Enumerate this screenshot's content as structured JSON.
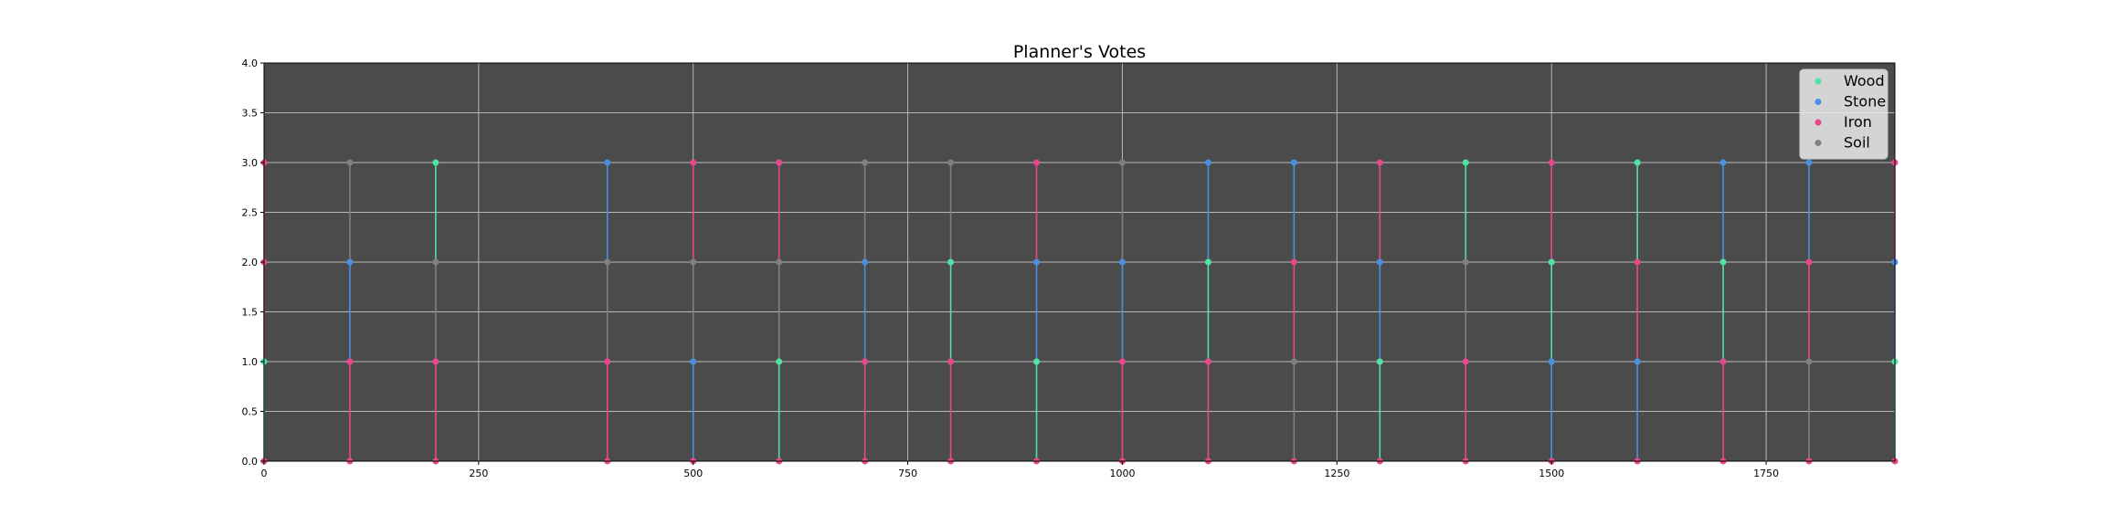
{
  "chart_data": {
    "type": "scatter",
    "title": "Planner's Votes",
    "xlabel": "",
    "ylabel": "",
    "xlim": [
      0,
      1900
    ],
    "ylim": [
      0,
      4
    ],
    "xticks": [
      0,
      250,
      500,
      750,
      1000,
      1250,
      1500,
      1750
    ],
    "yticks": [
      0.0,
      0.5,
      1.0,
      1.5,
      2.0,
      2.5,
      3.0,
      3.5,
      4.0
    ],
    "ytick_labels": [
      "0.0",
      "0.5",
      "1.0",
      "1.5",
      "2.0",
      "2.5",
      "3.0",
      "3.5",
      "4.0"
    ],
    "grid": true,
    "legend_position": "top-right",
    "background": "#4b4b4b",
    "categories_order": [
      "Wood",
      "Stone",
      "Iron",
      "Soil"
    ],
    "series": [
      {
        "name": "Wood",
        "color": "#50e3a4"
      },
      {
        "name": "Stone",
        "color": "#4a90e2"
      },
      {
        "name": "Iron",
        "color": "#e8488a"
      },
      {
        "name": "Soil",
        "color": "#808080"
      }
    ],
    "votes": [
      {
        "x": 0,
        "order": [
          "Iron",
          "Wood",
          "Iron",
          "Iron"
        ]
      },
      {
        "x": 100,
        "order": [
          "Iron",
          "Iron",
          "Stone",
          "Soil"
        ]
      },
      {
        "x": 200,
        "order": [
          "Iron",
          "Iron",
          "Soil",
          "Wood"
        ]
      },
      {
        "x": 400,
        "order": [
          "Iron",
          "Iron",
          "Soil",
          "Stone"
        ]
      },
      {
        "x": 500,
        "order": [
          "Iron",
          "Stone",
          "Soil",
          "Iron"
        ]
      },
      {
        "x": 600,
        "order": [
          "Iron",
          "Wood",
          "Soil",
          "Iron"
        ]
      },
      {
        "x": 700,
        "order": [
          "Iron",
          "Iron",
          "Stone",
          "Soil"
        ]
      },
      {
        "x": 800,
        "order": [
          "Iron",
          "Iron",
          "Wood",
          "Soil"
        ]
      },
      {
        "x": 900,
        "order": [
          "Iron",
          "Wood",
          "Stone",
          "Iron"
        ]
      },
      {
        "x": 1000,
        "order": [
          "Iron",
          "Iron",
          "Stone",
          "Soil"
        ]
      },
      {
        "x": 1100,
        "order": [
          "Iron",
          "Iron",
          "Wood",
          "Stone"
        ]
      },
      {
        "x": 1200,
        "order": [
          "Iron",
          "Soil",
          "Iron",
          "Stone"
        ]
      },
      {
        "x": 1300,
        "order": [
          "Iron",
          "Wood",
          "Stone",
          "Iron"
        ]
      },
      {
        "x": 1400,
        "order": [
          "Iron",
          "Iron",
          "Soil",
          "Wood"
        ]
      },
      {
        "x": 1500,
        "order": [
          "Iron",
          "Stone",
          "Wood",
          "Iron"
        ]
      },
      {
        "x": 1600,
        "order": [
          "Iron",
          "Stone",
          "Iron",
          "Wood"
        ]
      },
      {
        "x": 1700,
        "order": [
          "Iron",
          "Iron",
          "Wood",
          "Stone"
        ]
      },
      {
        "x": 1800,
        "order": [
          "Iron",
          "Soil",
          "Iron",
          "Stone"
        ]
      },
      {
        "x": 1900,
        "order": [
          "Iron",
          "Wood",
          "Stone",
          "Iron"
        ]
      }
    ]
  }
}
